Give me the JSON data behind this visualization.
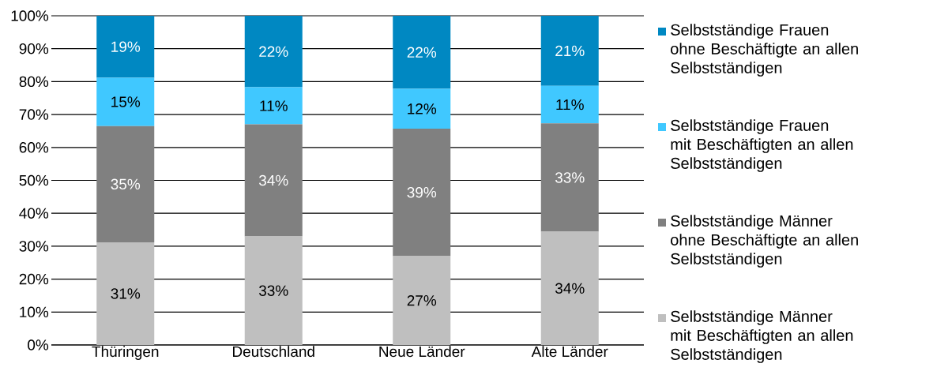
{
  "chart_data": {
    "type": "bar",
    "stacked": true,
    "categories": [
      "Thüringen",
      "Deutschland",
      "Neue Länder",
      "Alte Länder"
    ],
    "series": [
      {
        "name": "Selbstständige Männer mit Beschäftigten an allen Selbstständigen",
        "color": "#bfbfbf",
        "values": [
          31.2,
          33.0,
          27.0,
          34.4
        ],
        "value_labels": [
          "31%",
          "33%",
          "27%",
          "34%"
        ]
      },
      {
        "name": "Selbstständige Männer ohne Beschäftigte an allen Selbstständigen",
        "color": "#808080",
        "values": [
          35.3,
          34.0,
          38.7,
          32.9
        ],
        "value_labels": [
          "35%",
          "34%",
          "39%",
          "33%"
        ]
      },
      {
        "name": "Selbstständige Frauen mit Beschäftigten an allen Selbstständigen",
        "color": "#40c8ff",
        "values": [
          14.7,
          11.3,
          12.1,
          11.4
        ],
        "value_labels": [
          "15%",
          "11%",
          "12%",
          "11%"
        ]
      },
      {
        "name": "Selbstständige Frauen ohne Beschäftigte an allen Selbstständigen",
        "color": "#0088c2",
        "values": [
          18.8,
          21.7,
          22.2,
          21.3
        ],
        "value_labels": [
          "19%",
          "22%",
          "22%",
          "21%"
        ]
      }
    ],
    "ylim": [
      0,
      100
    ],
    "yticks": [
      {
        "value": 0,
        "label": "0%"
      },
      {
        "value": 10,
        "label": "10%"
      },
      {
        "value": 20,
        "label": "20%"
      },
      {
        "value": 30,
        "label": "30%"
      },
      {
        "value": 40,
        "label": "40%"
      },
      {
        "value": 50,
        "label": "50%"
      },
      {
        "value": 60,
        "label": "60%"
      },
      {
        "value": 70,
        "label": "70%"
      },
      {
        "value": 80,
        "label": "80%"
      },
      {
        "value": 90,
        "label": "90%"
      },
      {
        "value": 100,
        "label": "100%"
      }
    ],
    "grid": "y",
    "legend": "right"
  }
}
